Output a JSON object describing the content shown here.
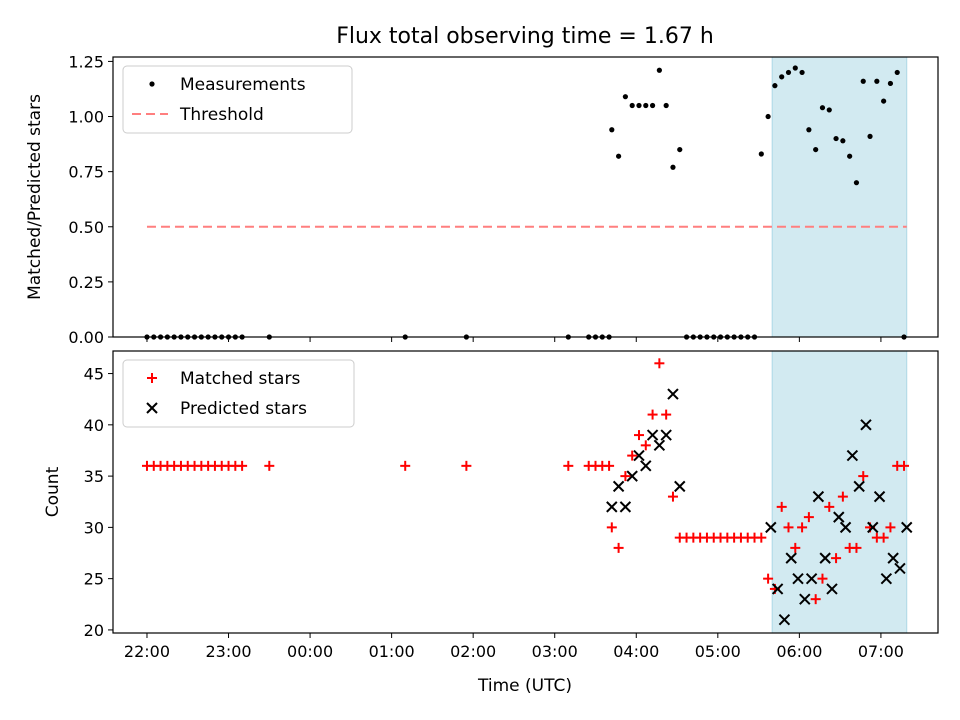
{
  "chart_data": {
    "type": "scatter",
    "title": "Flux total observing time = 1.67 h",
    "xlabel": "Time (UTC)",
    "x_ticks": [
      "22:00",
      "23:00",
      "00:00",
      "01:00",
      "02:00",
      "03:00",
      "04:00",
      "05:00",
      "06:00",
      "07:00"
    ],
    "shaded_region_x": [
      "05:40",
      "07:19"
    ],
    "colors": {
      "measurements": "#000000",
      "threshold": "#ff7f7f",
      "matched": "#ff0000",
      "predicted": "#000000",
      "shade": "#add8e6"
    },
    "panels": [
      {
        "name": "ratio",
        "ylabel": "Matched/Predicted stars",
        "ylim": [
          0,
          1.27
        ],
        "y_ticks": [
          "0.00",
          "0.25",
          "0.50",
          "0.75",
          "1.00",
          "1.25"
        ],
        "legend": [
          "Measurements",
          "Threshold"
        ],
        "legend_position": "upper left",
        "series": [
          {
            "name": "Measurements",
            "marker": "dot",
            "x": [
              "22:00",
              "22:05",
              "22:10",
              "22:15",
              "22:20",
              "22:25",
              "22:30",
              "22:35",
              "22:40",
              "22:45",
              "22:50",
              "22:55",
              "23:00",
              "23:05",
              "23:10",
              "23:30",
              "01:10",
              "01:55",
              "03:10",
              "03:25",
              "03:30",
              "03:35",
              "03:40",
              "03:42",
              "03:47",
              "03:52",
              "03:57",
              "04:02",
              "04:07",
              "04:12",
              "04:17",
              "04:22",
              "04:27",
              "04:32",
              "04:37",
              "04:42",
              "04:47",
              "04:52",
              "04:57",
              "05:02",
              "05:07",
              "05:12",
              "05:17",
              "05:22",
              "05:27",
              "05:32",
              "05:37",
              "05:42",
              "05:47",
              "05:52",
              "05:57",
              "06:02",
              "06:07",
              "06:12",
              "06:17",
              "06:22",
              "06:27",
              "06:32",
              "06:37",
              "06:42",
              "06:47",
              "06:52",
              "06:57",
              "07:02",
              "07:07",
              "07:12",
              "07:17"
            ],
            "y": [
              0,
              0,
              0,
              0,
              0,
              0,
              0,
              0,
              0,
              0,
              0,
              0,
              0,
              0,
              0,
              0,
              0,
              0,
              0,
              0,
              0,
              0,
              0,
              0.94,
              0.82,
              1.09,
              1.05,
              1.05,
              1.05,
              1.05,
              1.21,
              1.05,
              0.77,
              0.85,
              0,
              0,
              0,
              0,
              0,
              0,
              0,
              0,
              0,
              0,
              0,
              0.83,
              1.0,
              1.14,
              1.18,
              1.2,
              1.22,
              1.2,
              0.94,
              0.85,
              1.04,
              1.03,
              0.9,
              0.89,
              0.82,
              0.7,
              1.16,
              0.91,
              1.16,
              1.07,
              1.15,
              1.2,
              0
            ]
          },
          {
            "name": "Threshold",
            "style": "dashed",
            "x": [
              "22:00",
              "07:19"
            ],
            "y": [
              0.5,
              0.5
            ]
          }
        ]
      },
      {
        "name": "counts",
        "ylabel": "Count",
        "ylim": [
          19.7,
          47.2
        ],
        "y_ticks": [
          "20",
          "25",
          "30",
          "35",
          "40",
          "45"
        ],
        "legend": [
          "Matched stars",
          "Predicted stars"
        ],
        "legend_position": "upper left",
        "series": [
          {
            "name": "Matched stars",
            "marker": "plus",
            "x": [
              "22:00",
              "22:05",
              "22:10",
              "22:15",
              "22:20",
              "22:25",
              "22:30",
              "22:35",
              "22:40",
              "22:45",
              "22:50",
              "22:55",
              "23:00",
              "23:05",
              "23:10",
              "23:30",
              "01:10",
              "01:55",
              "03:10",
              "03:25",
              "03:30",
              "03:35",
              "03:40",
              "03:42",
              "03:47",
              "03:52",
              "03:57",
              "04:02",
              "04:07",
              "04:12",
              "04:17",
              "04:22",
              "04:27",
              "04:32",
              "04:37",
              "04:42",
              "04:47",
              "04:52",
              "04:57",
              "05:02",
              "05:07",
              "05:12",
              "05:17",
              "05:22",
              "05:27",
              "05:32",
              "05:37",
              "05:42",
              "05:47",
              "05:52",
              "05:57",
              "06:02",
              "06:07",
              "06:12",
              "06:17",
              "06:22",
              "06:27",
              "06:32",
              "06:37",
              "06:42",
              "06:47",
              "06:52",
              "06:57",
              "07:02",
              "07:07",
              "07:12",
              "07:17"
            ],
            "y": [
              36,
              36,
              36,
              36,
              36,
              36,
              36,
              36,
              36,
              36,
              36,
              36,
              36,
              36,
              36,
              36,
              36,
              36,
              36,
              36,
              36,
              36,
              36,
              30,
              28,
              35,
              37,
              39,
              38,
              41,
              46,
              41,
              33,
              29,
              29,
              29,
              29,
              29,
              29,
              29,
              29,
              29,
              29,
              29,
              29,
              29,
              25,
              24,
              32,
              30,
              28,
              30,
              31,
              23,
              25,
              32,
              27,
              33,
              28,
              28,
              35,
              30,
              29,
              29,
              30,
              36,
              36
            ]
          },
          {
            "name": "Predicted stars",
            "marker": "x",
            "x": [
              "03:42",
              "03:47",
              "03:52",
              "03:57",
              "04:02",
              "04:07",
              "04:12",
              "04:17",
              "04:22",
              "04:27",
              "04:32",
              "05:39",
              "05:44",
              "05:49",
              "05:54",
              "05:59",
              "06:04",
              "06:09",
              "06:14",
              "06:19",
              "06:24",
              "06:29",
              "06:34",
              "06:39",
              "06:44",
              "06:49",
              "06:54",
              "06:59",
              "07:04",
              "07:09",
              "07:14",
              "07:19"
            ],
            "y": [
              32,
              34,
              32,
              35,
              37,
              36,
              39,
              38,
              39,
              43,
              34,
              30,
              24,
              21,
              27,
              25,
              23,
              25,
              33,
              27,
              24,
              31,
              30,
              37,
              34,
              40,
              30,
              33,
              25,
              27,
              26,
              30
            ]
          }
        ]
      }
    ]
  }
}
